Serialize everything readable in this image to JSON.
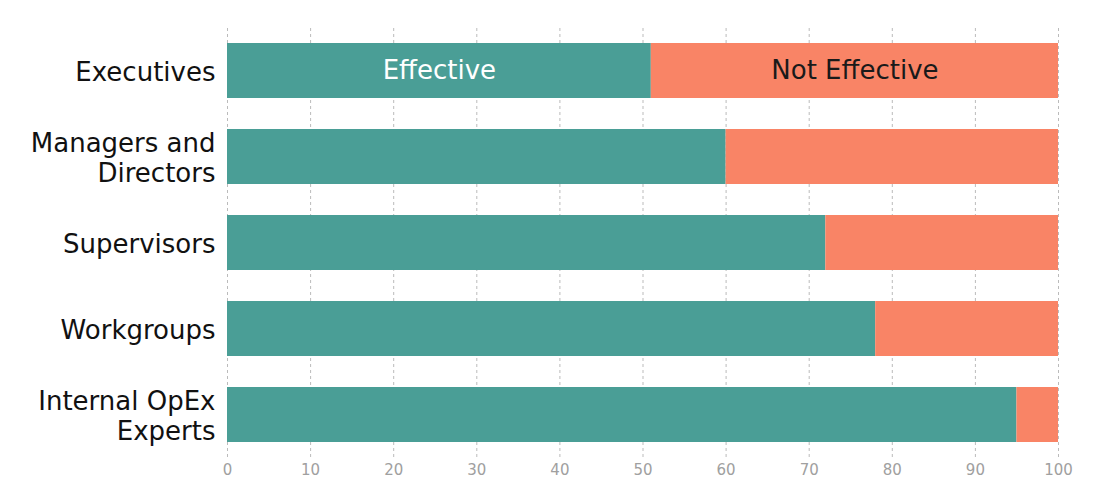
{
  "chart_data": {
    "type": "bar",
    "orientation": "horizontal",
    "stacked": true,
    "grid": true,
    "categories": [
      "Executives",
      "Managers and Directors",
      "Supervisors",
      "Workgroups",
      "Internal OpEx Experts"
    ],
    "series": [
      {
        "name": "Effective",
        "color": "#4a9e96",
        "values": [
          51,
          60,
          72,
          78,
          95
        ]
      },
      {
        "name": "Not Effective",
        "color": "#f98466",
        "values": [
          49,
          40,
          28,
          22,
          5
        ]
      }
    ],
    "xlim": [
      0,
      100
    ],
    "xticks": [
      0,
      10,
      20,
      30,
      40,
      50,
      60,
      70,
      80,
      90,
      100
    ]
  }
}
